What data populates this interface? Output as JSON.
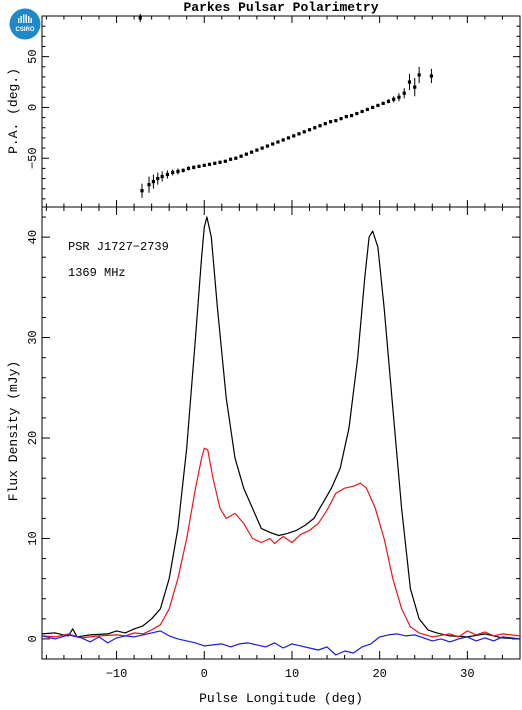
{
  "title": "Parkes Pulsar Polarimetry",
  "logo": {
    "text": "CSIRO",
    "color": "#1e88c9",
    "icon": "csiro-logo"
  },
  "chart_data": [
    {
      "type": "scatter",
      "panel": "position-angle",
      "ylabel": "P.A. (deg.)",
      "xlim": [
        -18.5,
        36
      ],
      "ylim": [
        -98,
        90
      ],
      "yticks": [
        -50,
        0,
        50
      ],
      "errorbars": true,
      "grid": false,
      "color": "#000000",
      "points": [
        {
          "x": -7.3,
          "y": 88,
          "err": 4
        },
        {
          "x": -7.1,
          "y": -82,
          "err": 7
        },
        {
          "x": -6.3,
          "y": -76,
          "err": 8
        },
        {
          "x": -5.8,
          "y": -73,
          "err": 7
        },
        {
          "x": -5.3,
          "y": -70,
          "err": 6
        },
        {
          "x": -4.8,
          "y": -68,
          "err": 5
        },
        {
          "x": -4.2,
          "y": -66,
          "err": 4
        },
        {
          "x": -3.6,
          "y": -64,
          "err": 3
        },
        {
          "x": -3.0,
          "y": -63,
          "err": 3
        },
        {
          "x": -2.4,
          "y": -62,
          "err": 2
        },
        {
          "x": -1.8,
          "y": -60,
          "err": 2
        },
        {
          "x": -1.2,
          "y": -59,
          "err": 2
        },
        {
          "x": -0.6,
          "y": -58,
          "err": 1.5
        },
        {
          "x": 0.0,
          "y": -57,
          "err": 1.5
        },
        {
          "x": 0.6,
          "y": -56,
          "err": 1.5
        },
        {
          "x": 1.2,
          "y": -55,
          "err": 1.5
        },
        {
          "x": 1.8,
          "y": -54,
          "err": 1.5
        },
        {
          "x": 2.4,
          "y": -53,
          "err": 1.5
        },
        {
          "x": 3.0,
          "y": -51,
          "err": 1.5
        },
        {
          "x": 3.6,
          "y": -50,
          "err": 1.5
        },
        {
          "x": 4.2,
          "y": -48,
          "err": 1.5
        },
        {
          "x": 4.8,
          "y": -46,
          "err": 1.5
        },
        {
          "x": 5.4,
          "y": -44,
          "err": 1.5
        },
        {
          "x": 6.0,
          "y": -42,
          "err": 1.5
        },
        {
          "x": 6.6,
          "y": -40,
          "err": 1.5
        },
        {
          "x": 7.2,
          "y": -38,
          "err": 1.5
        },
        {
          "x": 7.8,
          "y": -36,
          "err": 1.5
        },
        {
          "x": 8.4,
          "y": -34,
          "err": 1.5
        },
        {
          "x": 9.0,
          "y": -32,
          "err": 1.5
        },
        {
          "x": 9.6,
          "y": -30,
          "err": 1.5
        },
        {
          "x": 10.2,
          "y": -28,
          "err": 1.5
        },
        {
          "x": 10.8,
          "y": -26,
          "err": 1.5
        },
        {
          "x": 11.4,
          "y": -24,
          "err": 1.5
        },
        {
          "x": 12.0,
          "y": -22,
          "err": 1.5
        },
        {
          "x": 12.6,
          "y": -20,
          "err": 1.5
        },
        {
          "x": 13.2,
          "y": -18,
          "err": 1.5
        },
        {
          "x": 13.8,
          "y": -16,
          "err": 1.5
        },
        {
          "x": 14.4,
          "y": -14,
          "err": 1.5
        },
        {
          "x": 15.0,
          "y": -13,
          "err": 1.5
        },
        {
          "x": 15.6,
          "y": -11,
          "err": 1.5
        },
        {
          "x": 16.2,
          "y": -9,
          "err": 1.5
        },
        {
          "x": 16.8,
          "y": -8,
          "err": 1.5
        },
        {
          "x": 17.4,
          "y": -6,
          "err": 1.5
        },
        {
          "x": 18.0,
          "y": -4,
          "err": 1.5
        },
        {
          "x": 18.6,
          "y": -2,
          "err": 1.5
        },
        {
          "x": 19.2,
          "y": 0,
          "err": 1.5
        },
        {
          "x": 19.8,
          "y": 2,
          "err": 1.5
        },
        {
          "x": 20.4,
          "y": 4,
          "err": 1.5
        },
        {
          "x": 21.0,
          "y": 6,
          "err": 2
        },
        {
          "x": 21.6,
          "y": 8,
          "err": 3
        },
        {
          "x": 22.2,
          "y": 10,
          "err": 4
        },
        {
          "x": 22.8,
          "y": 14,
          "err": 5
        },
        {
          "x": 23.4,
          "y": 25,
          "err": 8
        },
        {
          "x": 24.0,
          "y": 20,
          "err": 9
        },
        {
          "x": 24.5,
          "y": 32,
          "err": 8
        },
        {
          "x": 25.9,
          "y": 31,
          "err": 7
        }
      ]
    },
    {
      "type": "line",
      "panel": "flux-profile",
      "xlabel": "Pulse Longitude (deg)",
      "ylabel": "Flux Density (mJy)",
      "xlim": [
        -18.5,
        36
      ],
      "ylim": [
        -2,
        43
      ],
      "xticks": [
        -10,
        0,
        10,
        20,
        30
      ],
      "yticks": [
        0,
        10,
        20,
        30,
        40
      ],
      "grid": false,
      "annotations": [
        "PSR J1727−2739",
        "1369 MHz"
      ],
      "series": [
        {
          "color": "#000000",
          "points": [
            [
              -18.5,
              0.5
            ],
            [
              -17,
              0.6
            ],
            [
              -15.5,
              0.3
            ],
            [
              -15,
              1
            ],
            [
              -14.5,
              0.2
            ],
            [
              -13,
              0.4
            ],
            [
              -11,
              0.5
            ],
            [
              -10,
              0.8
            ],
            [
              -9,
              0.6
            ],
            [
              -8,
              1
            ],
            [
              -7,
              1.3
            ],
            [
              -6,
              2
            ],
            [
              -5,
              3
            ],
            [
              -4,
              6
            ],
            [
              -3,
              11
            ],
            [
              -2,
              19
            ],
            [
              -1,
              30
            ],
            [
              -0.3,
              38
            ],
            [
              0,
              41
            ],
            [
              0.3,
              42
            ],
            [
              0.8,
              40
            ],
            [
              1.5,
              33
            ],
            [
              2.5,
              24
            ],
            [
              3.5,
              18
            ],
            [
              4.5,
              15
            ],
            [
              5.5,
              13
            ],
            [
              6.5,
              11
            ],
            [
              7.5,
              10.6
            ],
            [
              8.5,
              10.3
            ],
            [
              9.5,
              10.5
            ],
            [
              10.5,
              10.8
            ],
            [
              11.5,
              11.3
            ],
            [
              12.5,
              12
            ],
            [
              13.5,
              13.5
            ],
            [
              14.5,
              15
            ],
            [
              15.5,
              17
            ],
            [
              16.5,
              21
            ],
            [
              17.5,
              28
            ],
            [
              18.3,
              36
            ],
            [
              18.8,
              40
            ],
            [
              19.2,
              40.6
            ],
            [
              19.8,
              39
            ],
            [
              20.5,
              33
            ],
            [
              21.5,
              23
            ],
            [
              22.5,
              13
            ],
            [
              23.5,
              5
            ],
            [
              24.5,
              2
            ],
            [
              25.5,
              0.9
            ],
            [
              26.5,
              0.6
            ],
            [
              28,
              0.3
            ],
            [
              30,
              0.2
            ],
            [
              32,
              0.5
            ],
            [
              34,
              0.1
            ],
            [
              36,
              0
            ]
          ]
        },
        {
          "color": "#e8161b",
          "points": [
            [
              -18.5,
              0.3
            ],
            [
              -17,
              0.2
            ],
            [
              -15.5,
              0.5
            ],
            [
              -14,
              0.1
            ],
            [
              -12,
              0.3
            ],
            [
              -10,
              0.4
            ],
            [
              -9,
              0.3
            ],
            [
              -8,
              0.6
            ],
            [
              -7,
              0.5
            ],
            [
              -6,
              0.9
            ],
            [
              -5,
              1.4
            ],
            [
              -4,
              3
            ],
            [
              -3,
              6
            ],
            [
              -2,
              10
            ],
            [
              -1,
              15
            ],
            [
              -0.3,
              18
            ],
            [
              0,
              19
            ],
            [
              0.4,
              18.8
            ],
            [
              1,
              16
            ],
            [
              1.8,
              13
            ],
            [
              2.5,
              12
            ],
            [
              3.5,
              12.5
            ],
            [
              4.5,
              11.5
            ],
            [
              5.5,
              10
            ],
            [
              6.5,
              9.6
            ],
            [
              7.5,
              10
            ],
            [
              8,
              9.5
            ],
            [
              9,
              10.2
            ],
            [
              10,
              9.6
            ],
            [
              11,
              10.4
            ],
            [
              12,
              10.8
            ],
            [
              13,
              11.5
            ],
            [
              14,
              12.8
            ],
            [
              15,
              14.5
            ],
            [
              16,
              15
            ],
            [
              17,
              15.2
            ],
            [
              17.8,
              15.5
            ],
            [
              18.5,
              15
            ],
            [
              19.5,
              13
            ],
            [
              20.5,
              10
            ],
            [
              21.5,
              6
            ],
            [
              22.5,
              3
            ],
            [
              23.5,
              1.2
            ],
            [
              24.5,
              0.6
            ],
            [
              26,
              0.2
            ],
            [
              28,
              0.5
            ],
            [
              29,
              0.2
            ],
            [
              30,
              0.8
            ],
            [
              31,
              0.4
            ],
            [
              32,
              0.7
            ],
            [
              33,
              0.3
            ],
            [
              34,
              0.5
            ],
            [
              36,
              0.3
            ]
          ]
        },
        {
          "color": "#1b1be8",
          "points": [
            [
              -18.5,
              0.3
            ],
            [
              -17,
              0
            ],
            [
              -15.5,
              0.4
            ],
            [
              -14,
              0.1
            ],
            [
              -13,
              -0.3
            ],
            [
              -12,
              0.2
            ],
            [
              -11,
              -0.4
            ],
            [
              -10,
              0.1
            ],
            [
              -9,
              0.3
            ],
            [
              -8,
              0.2
            ],
            [
              -7,
              0.4
            ],
            [
              -6,
              0.6
            ],
            [
              -5,
              0.8
            ],
            [
              -4,
              0.3
            ],
            [
              -3,
              0
            ],
            [
              -2,
              -0.2
            ],
            [
              -1,
              -0.4
            ],
            [
              0,
              -0.7
            ],
            [
              1,
              -0.6
            ],
            [
              2,
              -0.5
            ],
            [
              3,
              -0.8
            ],
            [
              4,
              -0.5
            ],
            [
              5,
              -0.4
            ],
            [
              6,
              -0.6
            ],
            [
              7,
              -0.8
            ],
            [
              8,
              -0.4
            ],
            [
              9,
              -0.9
            ],
            [
              10,
              -0.5
            ],
            [
              11,
              -0.7
            ],
            [
              12,
              -0.9
            ],
            [
              13,
              -1.1
            ],
            [
              14,
              -0.8
            ],
            [
              15,
              -1.6
            ],
            [
              16,
              -1.2
            ],
            [
              17,
              -1.4
            ],
            [
              18,
              -0.8
            ],
            [
              19,
              -0.5
            ],
            [
              20,
              0.2
            ],
            [
              21,
              0.4
            ],
            [
              22,
              0.5
            ],
            [
              23,
              0.3
            ],
            [
              24,
              0.4
            ],
            [
              25,
              0.1
            ],
            [
              26,
              -0.2
            ],
            [
              27,
              0
            ],
            [
              28,
              -0.3
            ],
            [
              29,
              0
            ],
            [
              30,
              0.2
            ],
            [
              31,
              -0.2
            ],
            [
              32,
              0.1
            ],
            [
              33,
              -0.2
            ],
            [
              34,
              0.2
            ],
            [
              36,
              0
            ]
          ]
        }
      ]
    }
  ]
}
